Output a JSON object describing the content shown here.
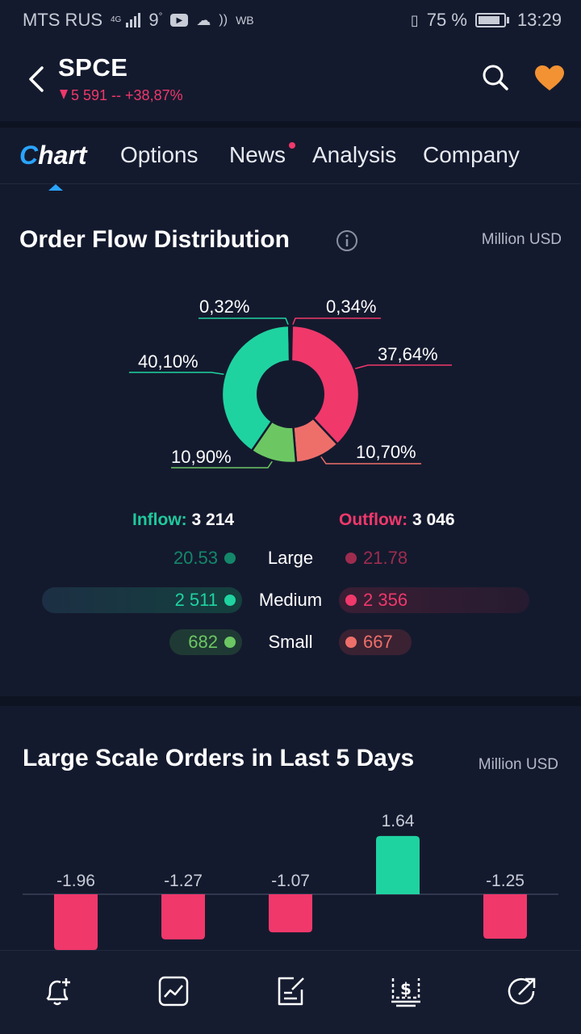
{
  "status_bar": {
    "carrier": "MTS RUS",
    "network": "4G",
    "temp": "9",
    "deg": "°",
    "wb": "WB",
    "battery": "75 %",
    "time": "13:29"
  },
  "header": {
    "symbol": "SPCE",
    "quote": "5 591 -- +38,87%"
  },
  "tabs": {
    "chart": "hart",
    "chart_c": "C",
    "options": "Options",
    "news": "News",
    "analysis": "Analysis",
    "company": "Company"
  },
  "order_flow": {
    "title": "Order Flow Distribution",
    "unit": "Million USD",
    "slices": [
      {
        "label": "0,34%",
        "value": 0.34,
        "color": "#f0386b"
      },
      {
        "label": "37,64%",
        "value": 37.64,
        "color": "#f0386b"
      },
      {
        "label": "10,70%",
        "value": 10.7,
        "color": "#ee6f6a"
      },
      {
        "label": "10,90%",
        "value": 10.9,
        "color": "#6cc763"
      },
      {
        "label": "40,10%",
        "value": 40.1,
        "color": "#1fd3a0"
      },
      {
        "label": "0,32%",
        "value": 0.32,
        "color": "#1fd3a0"
      }
    ],
    "inflow_label": "Inflow:",
    "inflow_value": "3 214",
    "outflow_label": "Outflow:",
    "outflow_value": "3 046",
    "rows": [
      {
        "label": "Large",
        "in": "20.53",
        "out": "21.78"
      },
      {
        "label": "Medium",
        "in": "2 511",
        "out": "2 356"
      },
      {
        "label": "Small",
        "in": "682",
        "out": "667"
      }
    ]
  },
  "large_orders": {
    "title": "Large Scale Orders in Last 5 Days",
    "unit": "Million USD"
  },
  "chart_data": {
    "type": "bar",
    "title": "Large Scale Orders in Last 5 Days",
    "categories": [],
    "values": [
      -1.96,
      -1.27,
      -1.07,
      1.64,
      -1.25
    ],
    "labels": [
      "-1.96",
      "-1.27",
      "-1.07",
      "1.64",
      "-1.25"
    ],
    "colors": {
      "positive": "#1fd3a0",
      "negative": "#f0386b"
    },
    "ylim": [
      -2.0,
      1.8
    ]
  },
  "bottom_nav": [
    "bell-plus-icon",
    "chart-icon",
    "edit-note-icon",
    "money-icon",
    "share-icon"
  ]
}
